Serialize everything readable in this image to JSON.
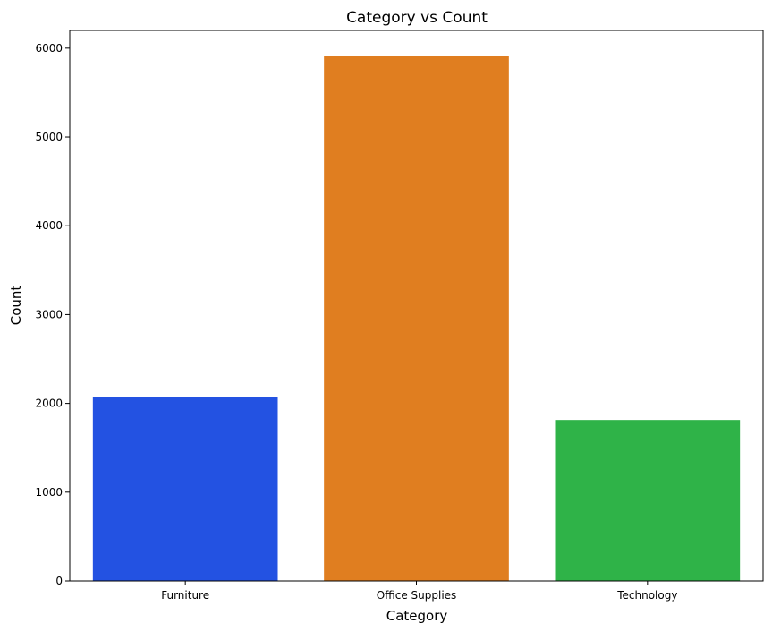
{
  "chart_data": {
    "type": "bar",
    "title": "Category vs Count",
    "xlabel": "Category",
    "ylabel": "Count",
    "categories": [
      "Furniture",
      "Office Supplies",
      "Technology"
    ],
    "values": [
      2071,
      5909,
      1813
    ],
    "colors": [
      "#2352e2",
      "#e07e20",
      "#2fb348"
    ],
    "ylim": [
      0,
      6200
    ],
    "yticks": [
      0,
      1000,
      2000,
      3000,
      4000,
      5000,
      6000
    ],
    "grid": false,
    "legend": "none"
  }
}
